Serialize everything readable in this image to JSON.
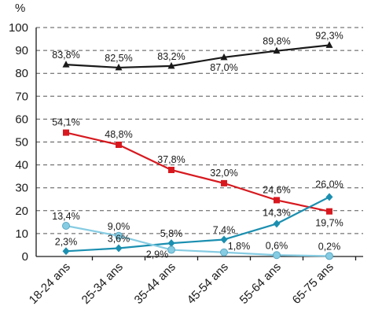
{
  "chart_data": {
    "type": "line",
    "unit_label": "%",
    "categories": [
      "18-24 ans",
      "25-34 ans",
      "35-44 ans",
      "45-54 ans",
      "55-64 ans",
      "65-75 ans"
    ],
    "ylim": [
      0,
      100
    ],
    "yticks": [
      0,
      10,
      20,
      30,
      40,
      50,
      60,
      70,
      80,
      90,
      100
    ],
    "ytick_labels": [
      "0",
      "10",
      "20",
      "30",
      "40",
      "50",
      "60",
      "70",
      "80",
      "90",
      "100"
    ],
    "grid": true,
    "series": [
      {
        "values": [
          83.8,
          82.5,
          83.2,
          87.0,
          89.8,
          92.3
        ],
        "labels": [
          "83,8%",
          "82,5%",
          "83,2%",
          "87,0%",
          "89,8%",
          "92,3%"
        ],
        "color": "#1a1a1a",
        "marker": "triangle"
      },
      {
        "values": [
          54.1,
          48.8,
          37.8,
          32.0,
          24.6,
          19.7
        ],
        "labels": [
          "54,1%",
          "48,8%",
          "37,8%",
          "32,0%",
          "24,6%",
          "19,7%"
        ],
        "color": "#d7191f",
        "marker": "square"
      },
      {
        "values": [
          2.3,
          3.6,
          5.8,
          7.4,
          14.3,
          26.0
        ],
        "labels": [
          "2,3%",
          "3,6%",
          "5,8%",
          "7,4%",
          "14,3%",
          "26,0%"
        ],
        "color": "#1b8fb0",
        "marker": "diamond"
      },
      {
        "values": [
          13.4,
          9.0,
          2.9,
          1.8,
          0.6,
          0.2
        ],
        "labels": [
          "13,4%",
          "9,0%",
          "2,9%",
          "1,8%",
          "0,6%",
          "0,2%"
        ],
        "color": "#86cce2",
        "marker": "circle"
      }
    ]
  }
}
